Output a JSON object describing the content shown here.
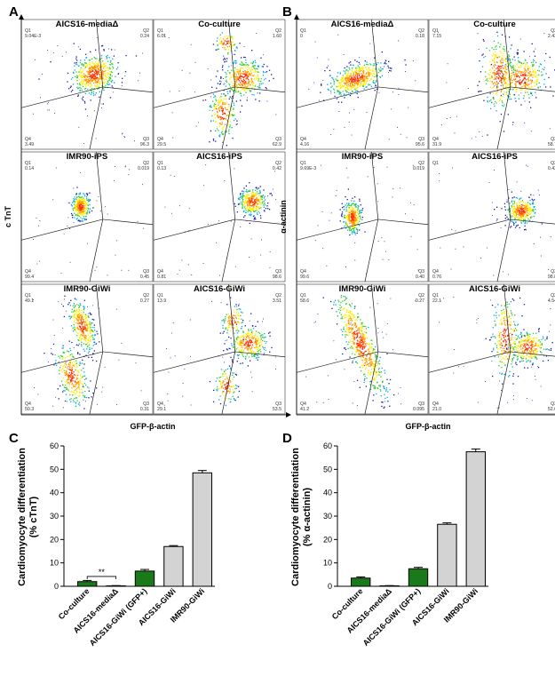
{
  "panel_labels": {
    "A": "A",
    "B": "B",
    "C": "C",
    "D": "D"
  },
  "chart_data": [
    {
      "type": "scatter",
      "panel": "A",
      "ylabel": "c TnT",
      "xlabel": "GFP-β-actin",
      "subplots": [
        {
          "title": "AICS16-mediaΔ",
          "q1": "9.04E-3",
          "q2": "0.24",
          "q3": "96.3",
          "q4": "3.49"
        },
        {
          "title": "Co-culture",
          "q1": "6.01",
          "q2": "1.60",
          "q3": "62.9",
          "q4": "29.5"
        },
        {
          "title": "IMR90-iPS",
          "q1": "0.14",
          "q2": "0.019",
          "q3": "0.45",
          "q4": "99.4"
        },
        {
          "title": "AICS16-iPS",
          "q1": "0.13",
          "q2": "0.42",
          "q3": "98.6",
          "q4": "0.81"
        },
        {
          "title": "IMR90-GiWi",
          "q1": "49.1",
          "q2": "0.27",
          "q3": "0.31",
          "q4": "50.3"
        },
        {
          "title": "AICS16-GiWi",
          "q1": "13.9",
          "q2": "3.51",
          "q3": "53.5",
          "q4": "29.1"
        }
      ]
    },
    {
      "type": "scatter",
      "panel": "B",
      "ylabel": "α-actinin",
      "xlabel": "GFP-β-actin",
      "subplots": [
        {
          "title": "AICS16-mediaΔ",
          "q1": "0",
          "q2": "0.18",
          "q3": "95.6",
          "q4": "4.16"
        },
        {
          "title": "Co-culture",
          "q1": "7.15",
          "q2": "2.43",
          "q3": "58.7",
          "q4": "31.9"
        },
        {
          "title": "IMR90-iPS",
          "q1": "9.69E-3",
          "q2": "0.019",
          "q3": "0.40",
          "q4": "99.6"
        },
        {
          "title": "AICS16-iPS",
          "q1": "",
          "q2": "0.42",
          "q3": "98.8",
          "q4": "0.76"
        },
        {
          "title": "IMR90-GiWi",
          "q1": "58.6",
          "q2": "0.27",
          "q3": "0.095",
          "q4": "41.2"
        },
        {
          "title": "AICS16-GiWi",
          "q1": "22.1",
          "q2": "4.54",
          "q3": "52.6",
          "q4": "21.0"
        }
      ]
    },
    {
      "type": "bar",
      "panel": "C",
      "ylabel": "Cardiomyocyte differentiation (% cTnT)",
      "ylabel_lines": [
        "Cardiomyocyte differentiation",
        "(% cTnT)"
      ],
      "ylim": [
        0,
        60
      ],
      "yticks": [
        "0",
        "10",
        "20",
        "30",
        "40",
        "50",
        "60"
      ],
      "categories": [
        "Co-culture",
        "AICS16-mediaΔ",
        "AICS16-GiWi (GFP+)",
        "AICS16-GiWi",
        "IMR90-GiWi"
      ],
      "values": [
        2.0,
        0.2,
        6.5,
        17.0,
        48.5
      ],
      "errors": [
        0.5,
        0.1,
        0.7,
        0.4,
        1.0
      ],
      "colors": [
        "#1a7a1a",
        "#1a7a1a",
        "#1a7a1a",
        "#d3d3d3",
        "#d3d3d3"
      ],
      "significance": "**"
    },
    {
      "type": "bar",
      "panel": "D",
      "ylabel": "Cardiomyocyte differentiation (% α-actinin)",
      "ylabel_lines": [
        "Cardiomyocyte differentiation",
        "(% α-actinin)"
      ],
      "ylim": [
        0,
        60
      ],
      "yticks": [
        "0",
        "10",
        "20",
        "30",
        "40",
        "50",
        "60"
      ],
      "categories": [
        "Co-culture",
        "AICS16-mediaΔ",
        "AICS16-GiWi (GFP+)",
        "AICS16-GiWi",
        "IMR90-GiWi"
      ],
      "values": [
        3.5,
        0.2,
        7.5,
        26.5,
        57.5
      ],
      "errors": [
        0.5,
        0.1,
        0.6,
        0.6,
        1.2
      ],
      "colors": [
        "#1a7a1a",
        "#1a7a1a",
        "#1a7a1a",
        "#d3d3d3",
        "#d3d3d3"
      ]
    }
  ]
}
